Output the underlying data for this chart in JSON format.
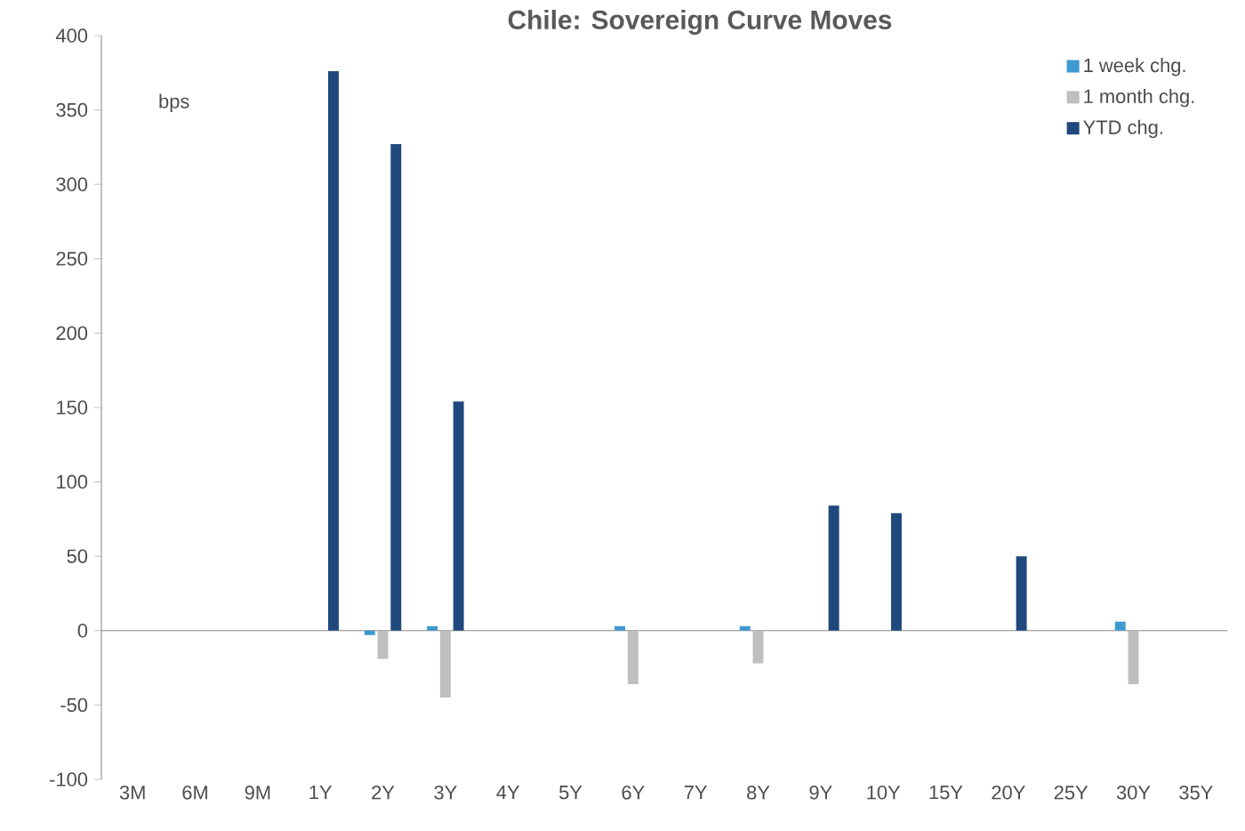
{
  "chart_data": {
    "type": "bar",
    "title": "Chile: Sovereign Curve Moves",
    "categories": [
      "3M",
      "6M",
      "9M",
      "1Y",
      "2Y",
      "3Y",
      "4Y",
      "5Y",
      "6Y",
      "7Y",
      "8Y",
      "9Y",
      "10Y",
      "15Y",
      "20Y",
      "25Y",
      "30Y",
      "35Y"
    ],
    "series": [
      {
        "name": "1 week chg.",
        "color": "#3d9ad1",
        "values": [
          null,
          null,
          null,
          null,
          -3,
          3,
          null,
          null,
          3,
          null,
          3,
          null,
          null,
          null,
          null,
          null,
          6,
          null
        ]
      },
      {
        "name": "1 month chg.",
        "color": "#bfbfbf",
        "values": [
          null,
          null,
          null,
          null,
          -19,
          -45,
          null,
          null,
          -36,
          null,
          -22,
          null,
          null,
          null,
          null,
          null,
          -36,
          null
        ]
      },
      {
        "name": "YTD chg.",
        "color": "#1f497d",
        "values": [
          null,
          null,
          null,
          376,
          327,
          154,
          null,
          null,
          null,
          null,
          null,
          84,
          79,
          null,
          50,
          null,
          null,
          null
        ]
      }
    ],
    "ylim": [
      -100,
      400
    ],
    "yticks": [
      -100,
      -50,
      0,
      50,
      100,
      150,
      200,
      250,
      300,
      350,
      400
    ],
    "annotations": [
      "bps"
    ],
    "legend": "top right"
  }
}
